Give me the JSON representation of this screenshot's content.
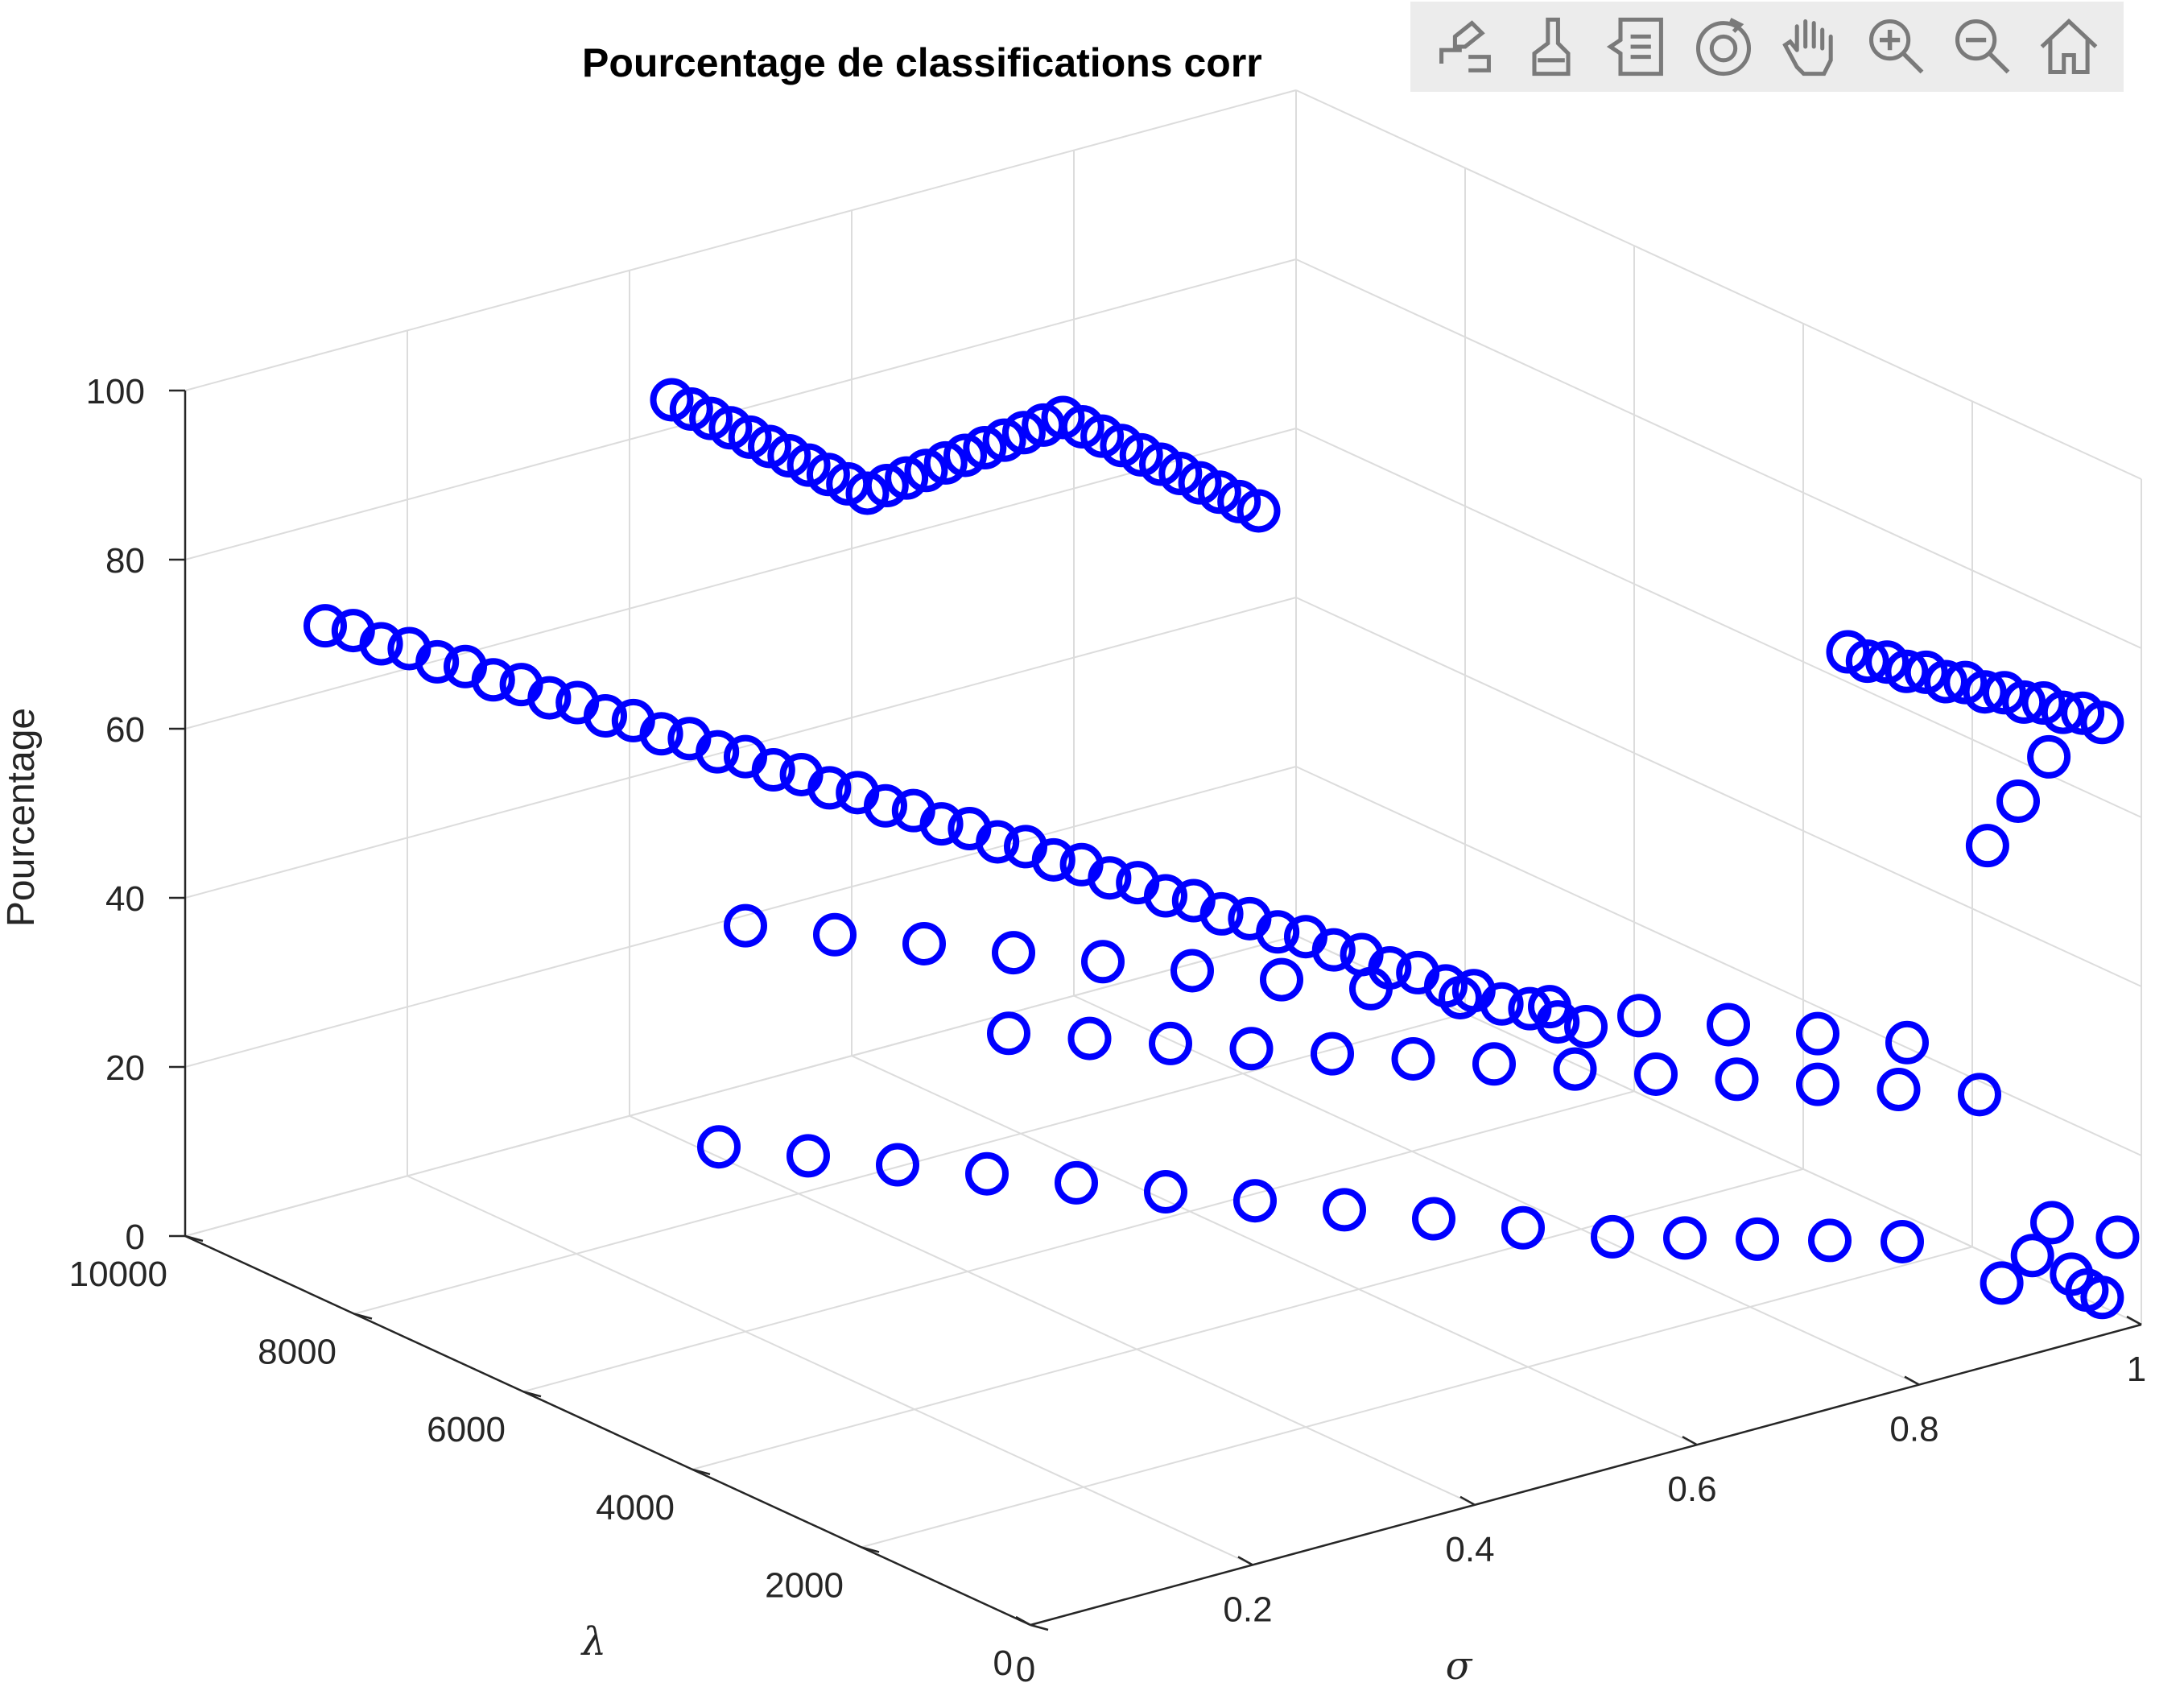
{
  "toolbar": {
    "icons": [
      "export-icon",
      "brush-icon",
      "legend-icon",
      "rotate-3d-icon",
      "pan-hand-icon",
      "zoom-in-icon",
      "zoom-out-icon",
      "home-icon"
    ]
  },
  "chart_data": {
    "type": "scatter3d",
    "title": "Pourcentage de classifications corr",
    "xlabel": "σ",
    "ylabel": "λ",
    "zlabel": "Pourcentage",
    "xlim": [
      0,
      1
    ],
    "ylim": [
      0,
      10000
    ],
    "zlim": [
      0,
      100
    ],
    "xticks": [
      "0",
      "0.2",
      "0.4",
      "0.6",
      "0.8",
      "1"
    ],
    "yticks": [
      "0",
      "2000",
      "4000",
      "6000",
      "8000",
      "10000"
    ],
    "zticks": [
      "0",
      "20",
      "40",
      "60",
      "80",
      "100"
    ],
    "grid": true,
    "marker": "circle",
    "marker_color": "#0000ff",
    "series": [
      {
        "x": [
          0.05,
          0.06,
          0.07,
          0.08,
          0.09,
          0.1,
          0.11,
          0.12,
          0.13,
          0.14,
          0.15,
          0.16,
          0.17,
          0.18,
          0.19,
          0.2,
          0.21,
          0.22,
          0.23,
          0.24,
          0.25,
          0.26,
          0.27,
          0.28,
          0.29,
          0.3,
          0.31,
          0.32,
          0.33,
          0.34,
          0.35,
          0.36,
          0.37,
          0.38,
          0.39,
          0.4,
          0.41,
          0.42,
          0.43,
          0.44,
          0.45,
          0.46,
          0.47,
          0.48,
          0.49,
          0.5
        ],
        "y": [
          9000,
          8800,
          8600,
          8400,
          8200,
          8000,
          7800,
          7600,
          7400,
          7200,
          7000,
          6800,
          6600,
          6400,
          6200,
          6000,
          5800,
          5600,
          5400,
          5200,
          5000,
          4800,
          4600,
          4400,
          4200,
          4000,
          3800,
          3600,
          3400,
          3200,
          3000,
          2800,
          2600,
          2400,
          2200,
          2000,
          1800,
          1600,
          1400,
          1200,
          1000,
          800,
          600,
          400,
          200,
          0
        ],
        "z": [
          75,
          75,
          74,
          74,
          73,
          73,
          72,
          72,
          71,
          71,
          70,
          70,
          69,
          69,
          68,
          68,
          67,
          67,
          66,
          66,
          65,
          65,
          64,
          64,
          63,
          63,
          62,
          62,
          61,
          61,
          60,
          60,
          59,
          59,
          58,
          58,
          57,
          57,
          56,
          56,
          55,
          55,
          54,
          54,
          53,
          53
        ]
      },
      {
        "x": [
          0.4,
          0.41,
          0.42,
          0.43,
          0.44,
          0.45,
          0.46,
          0.47,
          0.48,
          0.49,
          0.5,
          0.51,
          0.52,
          0.53,
          0.54,
          0.55,
          0.56,
          0.57,
          0.58,
          0.59,
          0.6,
          0.61,
          0.62,
          0.63,
          0.64,
          0.65,
          0.66,
          0.67,
          0.68,
          0.69,
          0.7
        ],
        "y": [
          9500,
          9400,
          9300,
          9200,
          9100,
          9000,
          8900,
          8800,
          8700,
          8600,
          8500,
          8400,
          8300,
          8200,
          8100,
          8000,
          7900,
          7800,
          7700,
          7600,
          7500,
          7400,
          7300,
          7200,
          7100,
          7000,
          6900,
          6800,
          6700,
          6600,
          6500
        ],
        "z": [
          87,
          86,
          85,
          84,
          83,
          82,
          81,
          80,
          79,
          78,
          77,
          78,
          79,
          80,
          81,
          82,
          83,
          84,
          85,
          86,
          87,
          86,
          85,
          84,
          83,
          82,
          81,
          80,
          79,
          78,
          77
        ]
      },
      {
        "x": [
          0.85,
          0.86,
          0.87,
          0.88,
          0.89,
          0.9,
          0.91,
          0.92,
          0.93,
          0.94,
          0.95,
          0.96,
          0.97,
          0.98
        ],
        "y": [
          1500,
          1400,
          1300,
          1200,
          1100,
          1000,
          900,
          800,
          700,
          600,
          500,
          400,
          300,
          200
        ],
        "z": [
          78,
          77,
          77,
          76,
          76,
          75,
          75,
          74,
          74,
          73,
          73,
          72,
          72,
          71
        ]
      },
      {
        "x": [
          0.1,
          0.15,
          0.2,
          0.25,
          0.3,
          0.35,
          0.4,
          0.45,
          0.5,
          0.55,
          0.6,
          0.65,
          0.7,
          0.75,
          0.8
        ],
        "y": [
          5000,
          4600,
          4200,
          3800,
          3400,
          3000,
          2600,
          2200,
          1800,
          1400,
          1000,
          800,
          600,
          400,
          200
        ],
        "z": [
          30,
          29,
          28,
          27,
          26,
          25,
          24,
          23,
          22,
          21,
          20,
          19,
          18,
          17,
          16
        ]
      },
      {
        "x": [
          0.2,
          0.25,
          0.3,
          0.35,
          0.4,
          0.45,
          0.5,
          0.55,
          0.6,
          0.65,
          0.7,
          0.75,
          0.8,
          0.85
        ],
        "y": [
          6000,
          5600,
          5200,
          4800,
          4400,
          4000,
          3600,
          3200,
          2800,
          2400,
          2000,
          1600,
          1200,
          800
        ],
        "z": [
          48,
          47,
          46,
          45,
          44,
          43,
          42,
          41,
          40,
          39,
          38,
          37,
          36,
          35
        ]
      },
      {
        "x": [
          0.3,
          0.35,
          0.4,
          0.45,
          0.5,
          0.55,
          0.6,
          0.65,
          0.7,
          0.75,
          0.8,
          0.85,
          0.9
        ],
        "y": [
          4200,
          3900,
          3600,
          3300,
          3000,
          2700,
          2400,
          2100,
          1800,
          1500,
          1200,
          900,
          600
        ],
        "z": [
          40,
          39,
          38,
          37,
          36,
          35,
          34,
          33,
          32,
          31,
          30,
          29,
          28
        ]
      },
      {
        "x": [
          0.92,
          0.94,
          0.95,
          0.96,
          0.97,
          0.98,
          0.99,
          0.93,
          0.95,
          0.97
        ],
        "y": [
          600,
          500,
          400,
          300,
          250,
          200,
          150,
          900,
          800,
          700
        ],
        "z": [
          5,
          8,
          12,
          6,
          4,
          3,
          10,
          55,
          60,
          65
        ]
      }
    ]
  }
}
